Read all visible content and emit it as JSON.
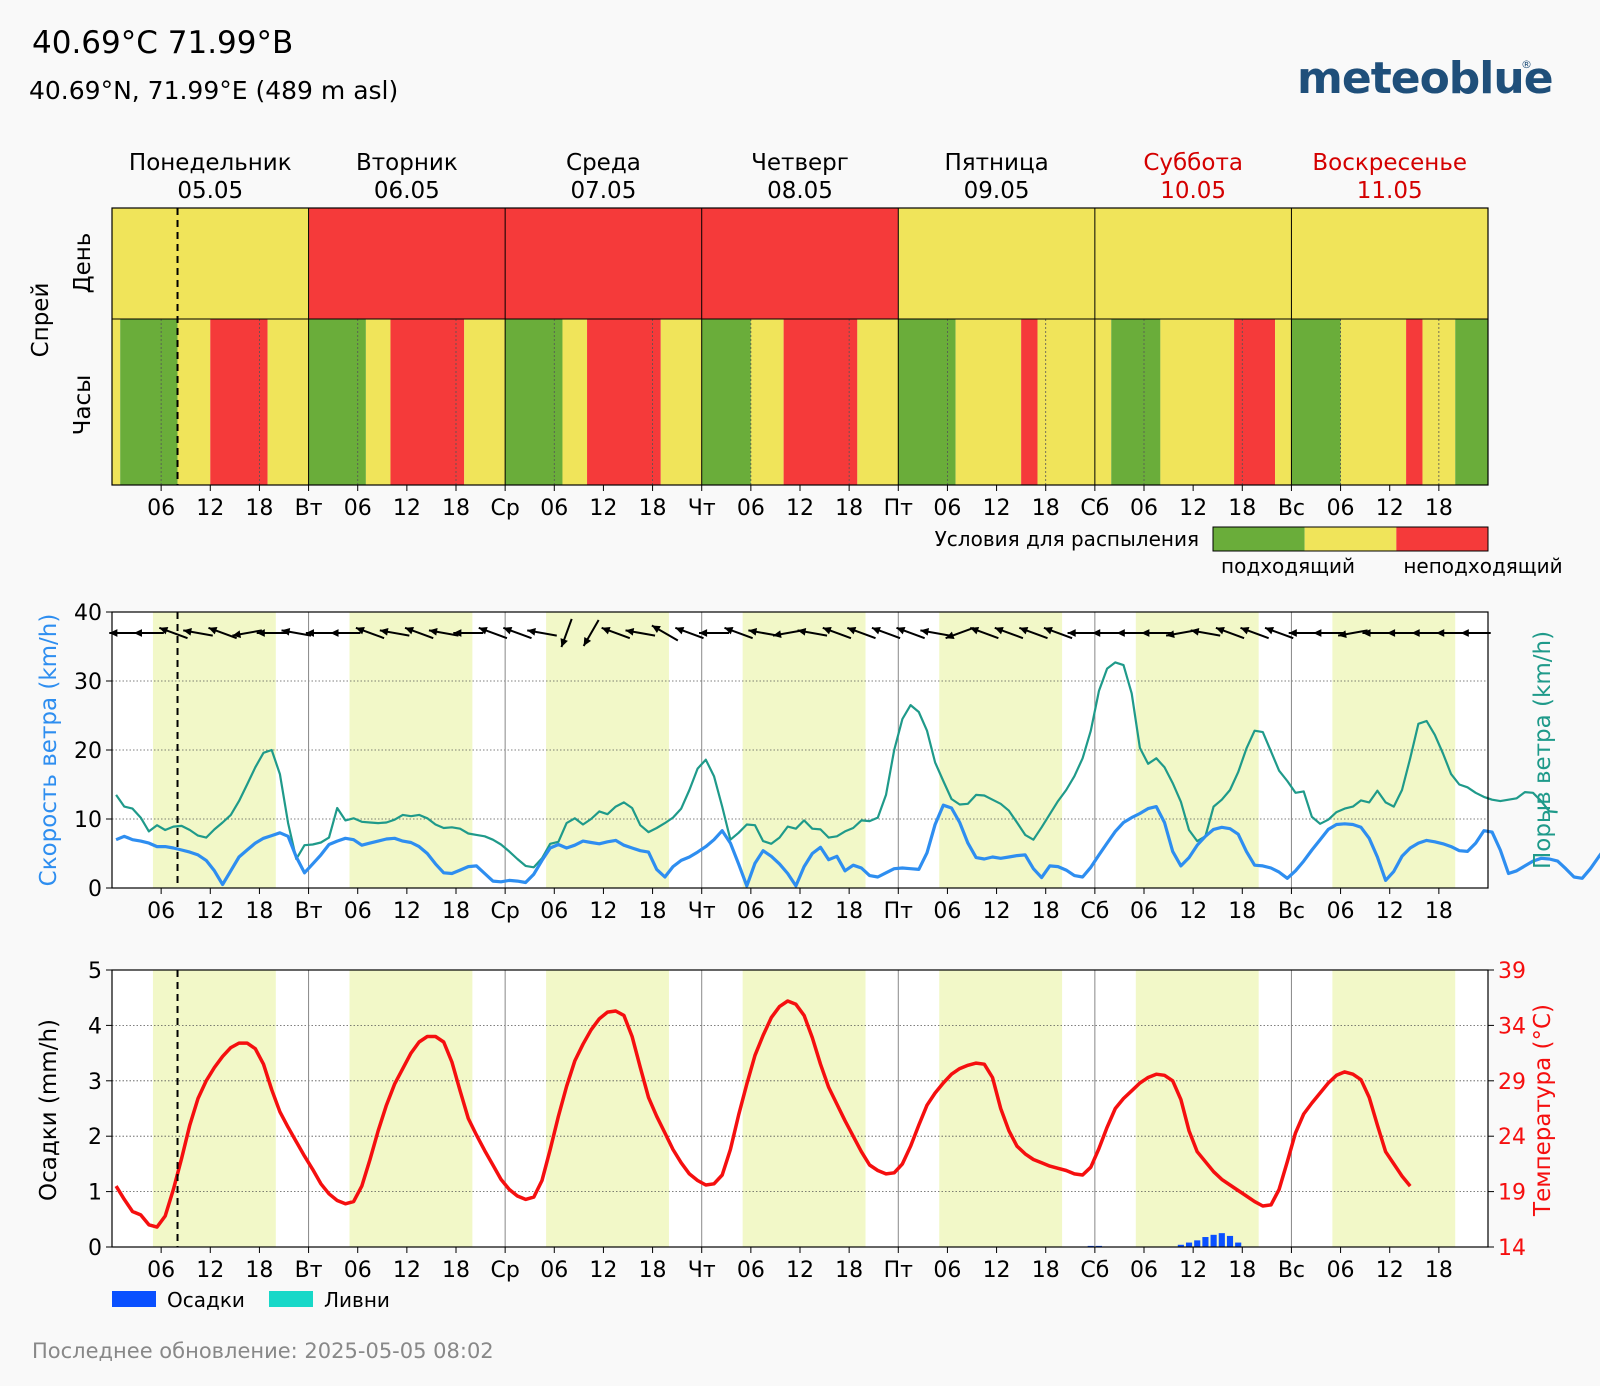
{
  "header": {
    "title": "40.69°C 71.99°B",
    "subtitle": "40.69°N, 71.99°E (489 m asl)",
    "logo": "meteoblue"
  },
  "days": [
    {
      "name": "Понедельник",
      "date": "05.05",
      "weekend": false
    },
    {
      "name": "Вторник",
      "date": "06.05",
      "weekend": false
    },
    {
      "name": "Среда",
      "date": "07.05",
      "weekend": false
    },
    {
      "name": "Четверг",
      "date": "08.05",
      "weekend": false
    },
    {
      "name": "Пятница",
      "date": "09.05",
      "weekend": false
    },
    {
      "name": "Суббота",
      "date": "10.05",
      "weekend": true
    },
    {
      "name": "Воскресенье",
      "date": "11.05",
      "weekend": true
    }
  ],
  "axis_ticks": [
    [
      "06",
      "12",
      "18"
    ],
    [
      "Вт",
      "06",
      "12",
      "18"
    ],
    [
      "Ср",
      "06",
      "12",
      "18"
    ],
    [
      "Чт",
      "06",
      "12",
      "18"
    ],
    [
      "Пт",
      "06",
      "12",
      "18"
    ],
    [
      "Сб",
      "06",
      "12",
      "18"
    ],
    [
      "Вс",
      "06",
      "12",
      "18"
    ]
  ],
  "now_hour": 8,
  "spray": {
    "group_label": "Спрей",
    "day_row_label": "День",
    "hour_row_label": "Часы",
    "legend_title": "Условия для распыления",
    "legend_low": "подходящий",
    "legend_high": "неподходящий",
    "colors": {
      "suitable": "#6aad3a",
      "moderate": "#f0e45a",
      "unsuitable": "#f53a3a"
    },
    "daily": [
      "moderate",
      "unsuitable",
      "unsuitable",
      "unsuitable",
      "moderate",
      "moderate",
      "moderate"
    ],
    "hourly": [
      [
        0,
        1,
        "moderate"
      ],
      [
        1,
        8,
        "suitable"
      ],
      [
        8,
        12,
        "moderate"
      ],
      [
        12,
        19,
        "unsuitable"
      ],
      [
        19,
        24,
        "moderate"
      ],
      [
        24,
        31,
        "suitable"
      ],
      [
        31,
        34,
        "moderate"
      ],
      [
        34,
        43,
        "unsuitable"
      ],
      [
        43,
        48,
        "moderate"
      ],
      [
        48,
        55,
        "suitable"
      ],
      [
        55,
        58,
        "moderate"
      ],
      [
        58,
        67,
        "unsuitable"
      ],
      [
        67,
        72,
        "moderate"
      ],
      [
        72,
        78,
        "suitable"
      ],
      [
        78,
        82,
        "moderate"
      ],
      [
        82,
        91,
        "unsuitable"
      ],
      [
        91,
        96,
        "moderate"
      ],
      [
        96,
        103,
        "suitable"
      ],
      [
        103,
        111,
        "moderate"
      ],
      [
        111,
        113,
        "unsuitable"
      ],
      [
        113,
        120,
        "moderate"
      ],
      [
        120,
        122,
        "moderate"
      ],
      [
        122,
        128,
        "suitable"
      ],
      [
        128,
        137,
        "moderate"
      ],
      [
        137,
        142,
        "unsuitable"
      ],
      [
        142,
        144,
        "moderate"
      ],
      [
        144,
        150,
        "suitable"
      ],
      [
        150,
        158,
        "moderate"
      ],
      [
        158,
        160,
        "unsuitable"
      ],
      [
        160,
        164,
        "moderate"
      ],
      [
        164,
        168,
        "suitable"
      ]
    ]
  },
  "colors": {
    "wind": "#2e8ef0",
    "gust": "#1f9a8a",
    "temperature": "#f50f0f",
    "precipitation": "#0a50ff",
    "showers": "#18d8c8",
    "daylight": "#f2f8c8",
    "weekend": "#d40000"
  },
  "daylight_hours": [
    5,
    20
  ],
  "chart_data": [
    {
      "type": "line",
      "ylabel": "Скорость ветра (km/h)",
      "y2label": "Порыв ветра (km/h)",
      "ylim": [
        0,
        40
      ],
      "yticks": [
        0,
        10,
        20,
        30,
        40
      ],
      "grid": true,
      "x_unit": "hours since 05.05 00:00",
      "series": [
        {
          "key": "wind",
          "values": [
            7,
            7.5,
            7,
            6.8,
            6.5,
            6,
            6,
            5.8,
            5.5,
            5.2,
            4.8,
            4,
            2.5,
            0.5,
            2.5,
            4.5,
            5.5,
            6.5,
            7.2,
            7.6,
            8,
            7.5,
            4.5,
            2.2,
            3.5,
            4.8,
            6.3,
            6.8,
            7.2,
            7,
            6.2,
            6.5,
            6.8,
            7.1,
            7.2,
            6.8,
            6.6,
            6,
            5,
            3.5,
            2.2,
            2.1,
            2.6,
            3.1,
            3.2,
            2.1,
            1,
            0.9,
            1.1,
            1,
            0.8,
            2,
            4,
            5.8,
            6.3,
            5.8,
            6.2,
            6.8,
            6.6,
            6.4,
            6.7,
            6.9,
            6.2,
            5.8,
            5.4,
            5.2,
            2.7,
            1.6,
            3.1,
            4,
            4.5,
            5.2,
            6,
            7,
            8.3,
            6.5,
            3.5,
            0.3,
            3.6,
            5.4,
            4.6,
            3.5,
            2.1,
            0.3,
            3.1,
            5,
            5.9,
            4.1,
            4.6,
            2.5,
            3.3,
            2.9,
            1.8,
            1.6,
            2.2,
            2.8,
            2.9,
            2.8,
            2.7,
            5.1,
            9.2,
            12,
            11.6,
            9.5,
            6.5,
            4.4,
            4.2,
            4.5,
            4.3,
            4.5,
            4.7,
            4.8,
            2.8,
            1.5,
            3.2,
            3.1,
            2.6,
            1.8,
            1.6,
            3,
            4.8,
            6.5,
            8.2,
            9.5,
            10.2,
            10.8,
            11.5,
            11.8,
            9.5,
            5.3,
            3.2,
            4.4,
            6.2,
            7.5,
            8.5,
            8.8,
            8.6,
            7.8,
            5.3,
            3.3,
            3.2,
            2.9,
            2.3,
            1.4,
            2.5,
            3.9,
            5.5,
            7,
            8.5,
            9.2,
            9.3,
            9.2,
            8.8,
            7.2,
            4.5,
            1.1,
            2.4,
            4.6,
            5.8,
            6.5,
            6.9,
            6.7,
            6.4,
            6,
            5.4,
            5.3,
            6.5,
            8.3,
            8.1,
            5.5,
            2.1,
            2.5,
            3.2,
            3.9,
            4.3,
            4.2,
            3.9,
            2.8,
            1.6,
            1.4,
            2.8,
            4.5,
            6.1,
            6.4,
            6.6,
            6.7,
            6.9
          ]
        },
        {
          "key": "gust",
          "values": [
            13.5,
            11.8,
            11.5,
            10.2,
            8.2,
            9.1,
            8.4,
            8.9,
            9,
            8.4,
            7.6,
            7.3,
            8.5,
            9.5,
            10.6,
            12.6,
            15,
            17.5,
            19.6,
            20,
            16.5,
            9.4,
            4.2,
            6.2,
            6.3,
            6.6,
            7.3,
            11.6,
            9.8,
            10.1,
            9.6,
            9.5,
            9.4,
            9.5,
            9.9,
            10.6,
            10.4,
            10.6,
            10.1,
            9.2,
            8.7,
            8.8,
            8.6,
            7.9,
            7.7,
            7.5,
            7,
            6.3,
            5.3,
            4.2,
            3.2,
            3,
            4.3,
            6.4,
            6.7,
            9.4,
            10.1,
            9.2,
            10,
            11.1,
            10.7,
            11.8,
            12.4,
            11.6,
            9.1,
            8.1,
            8.7,
            9.4,
            10.2,
            11.5,
            14.2,
            17.3,
            18.6,
            16.2,
            11.8,
            7,
            8,
            9.2,
            9.1,
            6.8,
            6.4,
            7.3,
            8.9,
            8.6,
            9.8,
            8.6,
            8.5,
            7.3,
            7.5,
            8.2,
            8.7,
            9.8,
            9.7,
            10.2,
            13.5,
            20,
            24.5,
            26.5,
            25.5,
            22.8,
            18.2,
            15.5,
            12.9,
            12.1,
            12.2,
            13.5,
            13.4,
            12.8,
            12.2,
            11.2,
            9.5,
            7.7,
            7,
            8.8,
            10.7,
            12.6,
            14.2,
            16.2,
            18.8,
            22.8,
            28.6,
            31.8,
            32.7,
            32.3,
            28.2,
            20.3,
            18,
            18.8,
            17.5,
            15.2,
            12.5,
            8.4,
            6.8,
            7.5,
            11.8,
            12.8,
            14.2,
            16.8,
            20.2,
            22.8,
            22.6,
            19.8,
            17,
            15.5,
            13.8,
            14,
            10.3,
            9.3,
            9.9,
            11,
            11.5,
            11.8,
            12.7,
            12.4,
            14.1,
            12.4,
            11.8,
            14.2,
            18.8,
            23.8,
            24.2,
            22.2,
            19.5,
            16.5,
            15,
            14.6,
            13.8,
            13.2,
            12.8,
            12.6,
            12.8,
            13,
            13.9,
            13.8,
            12.6,
            11.1,
            11
          ]
        }
      ],
      "wind_direction_note": "arrows along top of wind panel, one every 3 hours"
    },
    {
      "type": "line+bar",
      "ylabel": "Осадки (mm/h)",
      "y2label": "Температура (°C)",
      "ylim": [
        0,
        5
      ],
      "yticks": [
        0,
        1,
        2,
        3,
        4,
        5
      ],
      "y2lim": [
        14,
        39
      ],
      "y2ticks": [
        14,
        19,
        24,
        29,
        34,
        39
      ],
      "grid": true,
      "legend": [
        {
          "key": "precipitation",
          "label": "Осадки"
        },
        {
          "key": "showers",
          "label": "Ливни"
        }
      ],
      "series": [
        {
          "key": "temperature",
          "values": [
            19.5,
            18.3,
            17.2,
            16.9,
            16,
            15.8,
            16.8,
            19.2,
            22,
            25,
            27.4,
            29,
            30.2,
            31.2,
            32,
            32.4,
            32.4,
            31.9,
            30.5,
            28.2,
            26.2,
            24.8,
            23.5,
            22.2,
            21,
            19.7,
            18.8,
            18.2,
            17.9,
            18.1,
            19.5,
            21.9,
            24.5,
            26.8,
            28.7,
            30.1,
            31.5,
            32.5,
            33,
            33,
            32.5,
            30.7,
            28.1,
            25.6,
            24.1,
            22.7,
            21.4,
            20.1,
            19.2,
            18.6,
            18.3,
            18.5,
            20,
            22.8,
            25.8,
            28.5,
            30.8,
            32.3,
            33.6,
            34.6,
            35.2,
            35.3,
            34.9,
            33,
            30.2,
            27.5,
            25.8,
            24.3,
            22.8,
            21.6,
            20.6,
            20,
            19.6,
            19.7,
            20.5,
            22.8,
            25.9,
            28.7,
            31.3,
            33.1,
            34.7,
            35.7,
            36.2,
            35.9,
            34.9,
            32.9,
            30.5,
            28.4,
            26.9,
            25.4,
            24,
            22.6,
            21.4,
            20.9,
            20.6,
            20.7,
            21.5,
            23.1,
            25,
            26.8,
            27.9,
            28.8,
            29.6,
            30.1,
            30.4,
            30.6,
            30.5,
            29.3,
            26.5,
            24.5,
            23.1,
            22.4,
            21.9,
            21.6,
            21.3,
            21.1,
            20.9,
            20.6,
            20.5,
            21.2,
            22.9,
            24.8,
            26.5,
            27.4,
            28.1,
            28.8,
            29.3,
            29.6,
            29.5,
            29,
            27.3,
            24.5,
            22.6,
            21.7,
            20.8,
            20.1,
            19.6,
            19.1,
            18.6,
            18.1,
            17.7,
            17.8,
            19.2,
            21.7,
            24.3,
            26,
            27,
            27.9,
            28.8,
            29.5,
            29.8,
            29.6,
            29.1,
            27.5,
            25,
            22.6,
            21.5,
            20.4,
            19.5
          ]
        },
        {
          "key": "precipitation",
          "bars": [
            [
              119,
              0.02
            ],
            [
              120,
              0.02
            ],
            [
              130,
              0.04
            ],
            [
              131,
              0.08
            ],
            [
              132,
              0.12
            ],
            [
              133,
              0.18
            ],
            [
              134,
              0.22
            ],
            [
              135,
              0.25
            ],
            [
              136,
              0.2
            ],
            [
              137,
              0.08
            ]
          ]
        },
        {
          "key": "showers",
          "bars": []
        }
      ]
    }
  ],
  "footer": "Последнее обновление: 2025-05-05 08:02"
}
